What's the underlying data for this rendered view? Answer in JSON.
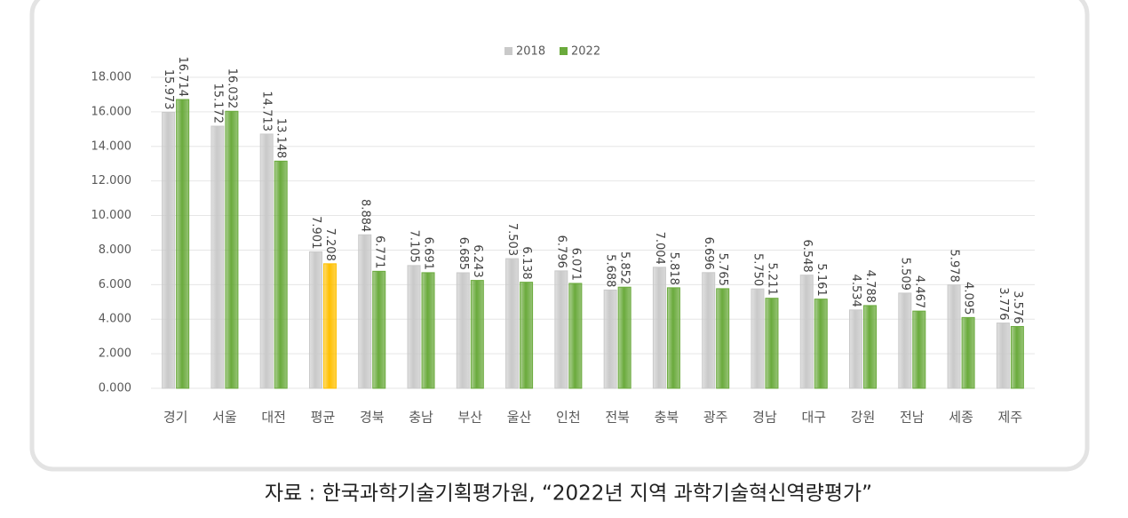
{
  "chart_data": {
    "type": "bar",
    "categories": [
      "경기",
      "서울",
      "대전",
      "평균",
      "경북",
      "충남",
      "부산",
      "울산",
      "인천",
      "전북",
      "충북",
      "광주",
      "경남",
      "대구",
      "강원",
      "전남",
      "세종",
      "제주"
    ],
    "series": [
      {
        "name": "2018",
        "color": "#c9c9c9",
        "values": [
          15.973,
          15.172,
          14.713,
          7.901,
          8.884,
          7.105,
          6.685,
          7.503,
          6.796,
          5.688,
          7.004,
          6.696,
          5.75,
          6.548,
          4.534,
          5.509,
          5.978,
          3.776
        ],
        "value_labels": [
          "15.973",
          "15.172",
          "14.713",
          "7.901",
          "8.884",
          "7.105",
          "6.685",
          "7.503",
          "6.796",
          "5.688",
          "7.004",
          "6.696",
          "5.750",
          "6.548",
          "4.534",
          "5.509",
          "5.978",
          "3.776"
        ]
      },
      {
        "name": "2022",
        "color": "#6aaa3c",
        "colors": [
          "#6aaa3c",
          "#6aaa3c",
          "#6aaa3c",
          "#ffc000",
          "#6aaa3c",
          "#6aaa3c",
          "#6aaa3c",
          "#6aaa3c",
          "#6aaa3c",
          "#6aaa3c",
          "#6aaa3c",
          "#6aaa3c",
          "#6aaa3c",
          "#6aaa3c",
          "#6aaa3c",
          "#6aaa3c",
          "#6aaa3c",
          "#6aaa3c"
        ],
        "values": [
          16.714,
          16.032,
          13.148,
          7.208,
          6.771,
          6.691,
          6.243,
          6.138,
          6.071,
          5.852,
          5.818,
          5.765,
          5.211,
          5.161,
          4.788,
          4.467,
          4.095,
          3.576
        ],
        "value_labels": [
          "16.714",
          "16.032",
          "13.148",
          "7.208",
          "6.771",
          "6.691",
          "6.243",
          "6.138",
          "6.071",
          "5.852",
          "5.818",
          "5.765",
          "5.211",
          "5.161",
          "4.788",
          "4.467",
          "4.095",
          "3.576"
        ]
      }
    ],
    "ylim": [
      0,
      18
    ],
    "yticks": [
      {
        "value": 0,
        "label": "0.000"
      },
      {
        "value": 2,
        "label": "2.000"
      },
      {
        "value": 4,
        "label": "4.000"
      },
      {
        "value": 6,
        "label": "6.000"
      },
      {
        "value": 8,
        "label": "8.000"
      },
      {
        "value": 10,
        "label": "10.000"
      },
      {
        "value": 12,
        "label": "12.000"
      },
      {
        "value": 14,
        "label": "14.000"
      },
      {
        "value": 16,
        "label": "16.000"
      },
      {
        "value": 18,
        "label": "18.000"
      }
    ],
    "grid": true,
    "legend": "top",
    "source": "자료 : 한국과학기술기획평가원, “2022년 지역 과학기술혁신역량평가”"
  }
}
